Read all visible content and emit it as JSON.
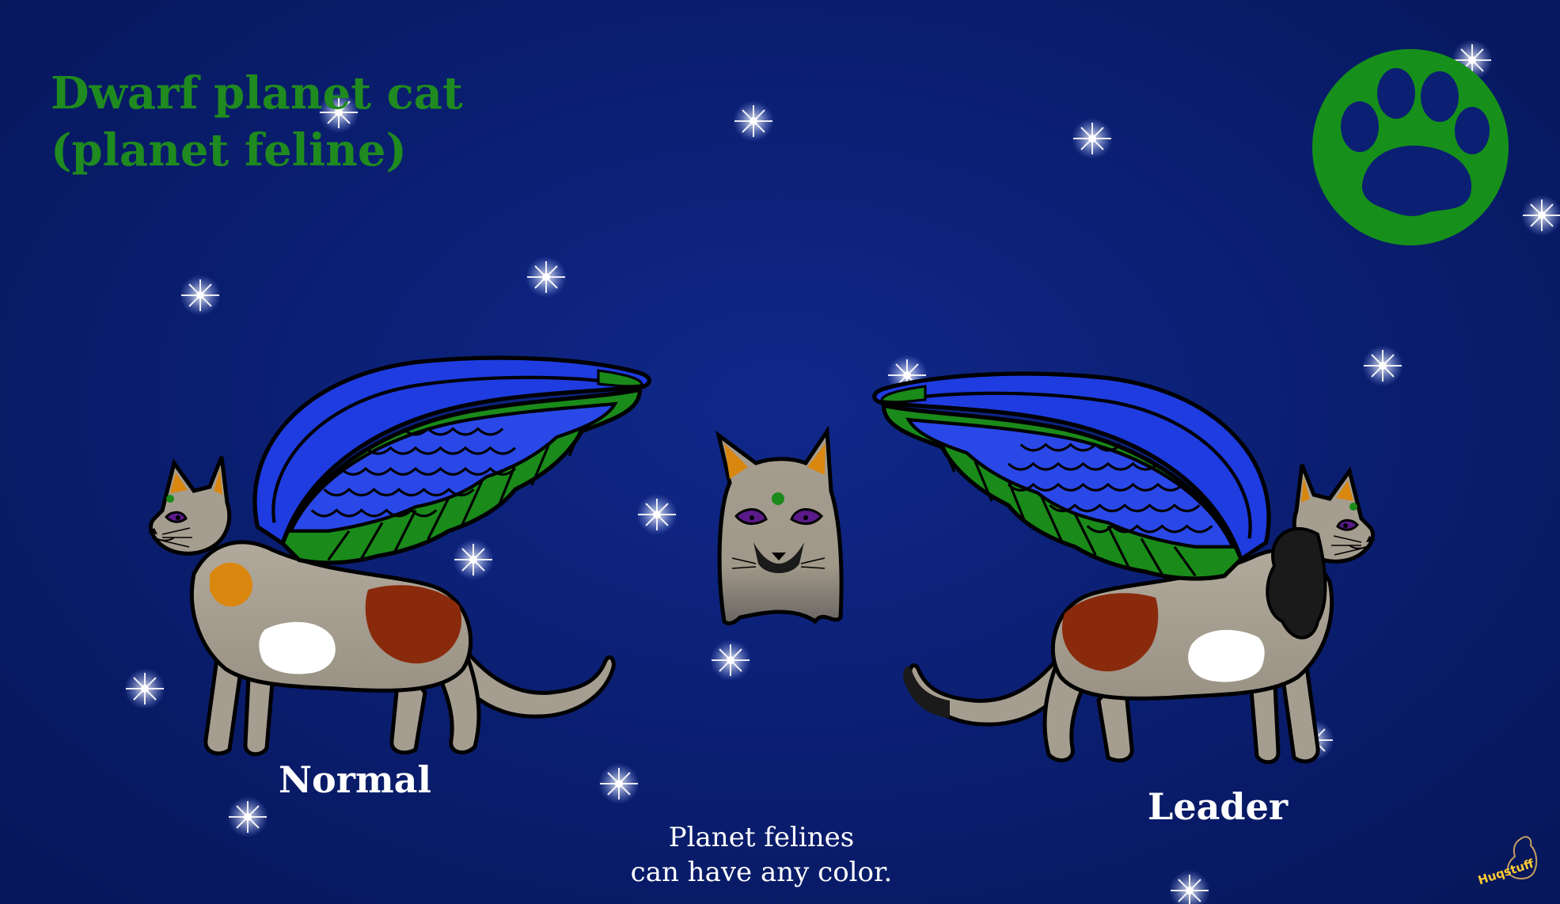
{
  "title": {
    "line1": "Dwarf planet cat",
    "line2": "(planet feline)"
  },
  "labels": {
    "normal": "Normal",
    "leader": "Leader"
  },
  "note": {
    "line1": "Planet felines",
    "line2": "can have any color."
  },
  "signature": "Huqstuff",
  "icons": [
    "paw-emblem-icon",
    "star-icon"
  ],
  "colors": {
    "background": "#0b1f73",
    "title": "#1f8a1f",
    "emblem": "#16901a",
    "wing_blue": "#1e3ce0",
    "wing_green": "#1a8a1a",
    "fur": "#a59d8f",
    "patch_orange": "#d9870f",
    "patch_red": "#8a2a0c",
    "mane": "#1a1a1a",
    "label": "#ffffff"
  }
}
